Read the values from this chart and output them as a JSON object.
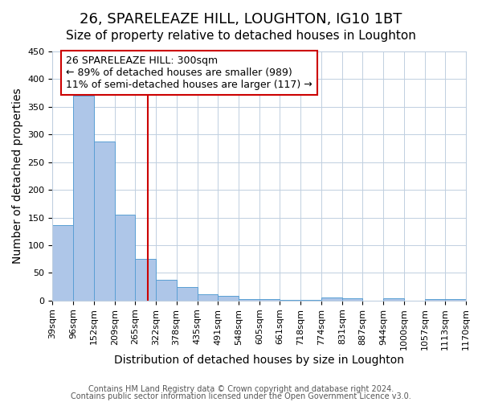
{
  "title": "26, SPARELEAZE HILL, LOUGHTON, IG10 1BT",
  "subtitle": "Size of property relative to detached houses in Loughton",
  "xlabel": "Distribution of detached houses by size in Loughton",
  "ylabel": "Number of detached properties",
  "bin_labels": [
    "39sqm",
    "96sqm",
    "152sqm",
    "209sqm",
    "265sqm",
    "322sqm",
    "378sqm",
    "435sqm",
    "491sqm",
    "548sqm",
    "605sqm",
    "661sqm",
    "718sqm",
    "774sqm",
    "831sqm",
    "887sqm",
    "944sqm",
    "1000sqm",
    "1057sqm",
    "1113sqm",
    "1170sqm"
  ],
  "bin_edges": [
    39,
    96,
    152,
    209,
    265,
    322,
    378,
    435,
    491,
    548,
    605,
    661,
    718,
    774,
    831,
    887,
    944,
    1000,
    1057,
    1113,
    1170
  ],
  "bar_heights": [
    137,
    370,
    287,
    155,
    75,
    38,
    25,
    11,
    8,
    2,
    2,
    1,
    1,
    5,
    4,
    0,
    4,
    0,
    3,
    2
  ],
  "bar_color": "#aec6e8",
  "bar_edge_color": "#5a9fd4",
  "property_value": 300,
  "vline_color": "#cc0000",
  "annotation_text": "26 SPARELEAZE HILL: 300sqm\n← 89% of detached houses are smaller (989)\n11% of semi-detached houses are larger (117) →",
  "annotation_box_color": "#ffffff",
  "annotation_box_edge_color": "#cc0000",
  "ylim": [
    0,
    450
  ],
  "yticks": [
    0,
    50,
    100,
    150,
    200,
    250,
    300,
    350,
    400,
    450
  ],
  "footer_line1": "Contains HM Land Registry data © Crown copyright and database right 2024.",
  "footer_line2": "Contains public sector information licensed under the Open Government Licence v3.0.",
  "background_color": "#ffffff",
  "grid_color": "#c0cfe0",
  "title_fontsize": 13,
  "subtitle_fontsize": 11,
  "axis_label_fontsize": 10,
  "tick_fontsize": 8,
  "annotation_fontsize": 9,
  "footer_fontsize": 7
}
